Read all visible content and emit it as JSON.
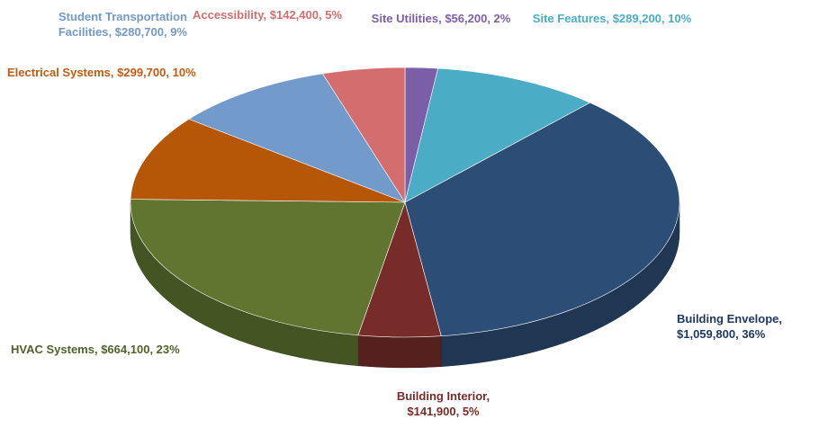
{
  "chart_data": {
    "type": "pie3d",
    "categories": [
      "Site Utilities",
      "Site Features",
      "Building Envelope",
      "Building Interior",
      "HVAC Systems",
      "Electrical Systems",
      "Student Transportation Facilities",
      "Accessibility"
    ],
    "values": [
      56200,
      289200,
      1059800,
      141900,
      664100,
      299700,
      280700,
      142400
    ],
    "value_labels": [
      "$56,200",
      "$289,200",
      "$1,059,800",
      "$141,900",
      "$664,100",
      "$299,700",
      "$280,700",
      "$142,400"
    ],
    "percent_labels": [
      "2%",
      "10%",
      "36%",
      "5%",
      "23%",
      "10%",
      "9%",
      "5%"
    ],
    "label_separator": ", ",
    "colors": [
      "#7b5ea8",
      "#4bacc6",
      "#2c4d75",
      "#772c2a",
      "#5f7530",
      "#b65708",
      "#729aca",
      "#d46e6e"
    ],
    "label_colors": [
      "#7b5ea8",
      "#4bacc6",
      "#1f3864",
      "#772c2a",
      "#4f6228",
      "#c55a11",
      "#729aca",
      "#d46e6e"
    ]
  }
}
